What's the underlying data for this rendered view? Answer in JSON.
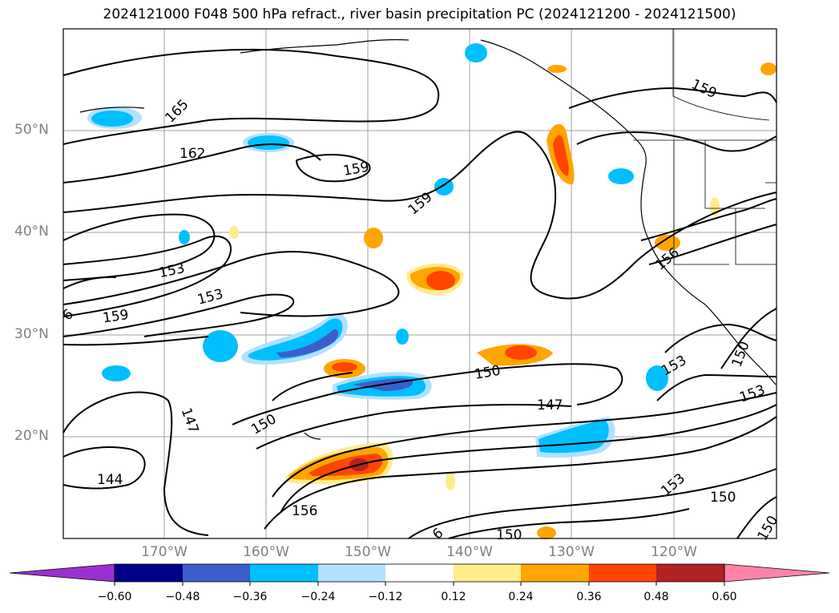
{
  "title": "2024121000 F048 500 hPa refract., river basin precipitation PC (2024121200 - 2024121500)",
  "lat_labels": [
    "50°N",
    "40°N",
    "30°N",
    "20°N"
  ],
  "lon_labels": [
    "170°W",
    "160°W",
    "150°W",
    "140°W",
    "130°W",
    "120°W"
  ],
  "contour_labels": [
    "165",
    "162",
    "159",
    "159",
    "159",
    "159",
    "156",
    "156",
    "153",
    "153",
    "153",
    "153",
    "153",
    "150",
    "150",
    "150",
    "150",
    "150",
    "150",
    "147",
    "147",
    "144",
    "6",
    "6"
  ],
  "colorbar": {
    "ticks": [
      "−0.60",
      "−0.48",
      "−0.36",
      "−0.24",
      "−0.12",
      "0.12",
      "0.24",
      "0.36",
      "0.48",
      "0.60"
    ],
    "colors": [
      "#9b30d0",
      "#00008b",
      "#3a5fcd",
      "#00bfff",
      "#b0e2ff",
      "#ffffff",
      "#ffec8b",
      "#ffa500",
      "#ff4500",
      "#b22222",
      "#ff83a8"
    ]
  },
  "colors": {
    "positive": "#ffa500",
    "negative": "#00bfff",
    "contour": "#000000",
    "grid": "#a0a0a0"
  }
}
